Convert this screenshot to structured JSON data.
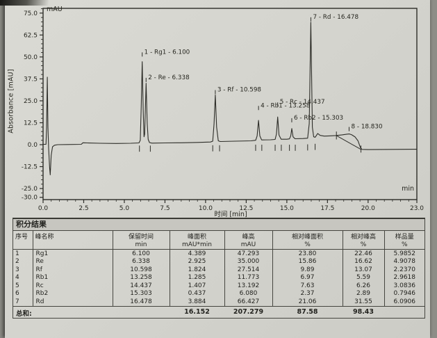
{
  "colors": {
    "paper": "#d5d5cf",
    "ink": "#26261f",
    "line": "#2c2c27",
    "title_bar_bg": "#c7c6c0",
    "surround": "#8d8d87"
  },
  "chart": {
    "y_axis_title": "Absorbance [mAU]",
    "x_axis_title": "时间 [min]",
    "y_unit_corner": "mAU",
    "x_unit_corner": "min"
  },
  "chart_data": {
    "type": "line",
    "title": "",
    "xlabel": "时间 [min]",
    "ylabel": "Absorbance [mAU]",
    "xlim": [
      0,
      23
    ],
    "ylim": [
      -31.3,
      77.7
    ],
    "x_major_ticks": [
      0,
      2.5,
      5,
      7.5,
      10,
      12.5,
      15,
      17.5,
      20,
      23
    ],
    "x_major_labels": [
      "0.0",
      "2.5",
      "5.0",
      "7.5",
      "10.0",
      "12.5",
      "15.0",
      "17.5",
      "20.0",
      "23.0"
    ],
    "x_minor_step": 0.5,
    "y_major_ticks": [
      75,
      62.5,
      50,
      37.5,
      25,
      12.5,
      0,
      -12.5,
      -25,
      -30
    ],
    "y_major_labels": [
      "75.0",
      "62.5",
      "50.0",
      "37.5",
      "25.0",
      "12.5",
      "0.0",
      "-12.5",
      "-25.0",
      "-30.0"
    ],
    "y_minor_step": 2.5,
    "grid": false,
    "legend": "none",
    "peaks": [
      {
        "id": 1,
        "name": "Rg1",
        "rt": 6.1,
        "height_mAU": 47.293,
        "label": "1 - Rg1 - 6.100",
        "label_y": 53
      },
      {
        "id": 2,
        "name": "Re",
        "rt": 6.338,
        "height_mAU": 35.0,
        "label": "2 - Re - 6.338",
        "label_y": 38.5
      },
      {
        "id": 3,
        "name": "Rf",
        "rt": 10.598,
        "height_mAU": 27.514,
        "label": "3 - Rf - 10.598",
        "label_y": 31.5
      },
      {
        "id": 4,
        "name": "Rb1",
        "rt": 13.258,
        "height_mAU": 11.773,
        "label": "4 - Rb1 - 13.258",
        "label_y": 22.5
      },
      {
        "id": 5,
        "name": "Rc",
        "rt": 14.437,
        "height_mAU": 13.192,
        "label": "5 - Rc - 14.437",
        "label_y": 24.5
      },
      {
        "id": 6,
        "name": "Rb2",
        "rt": 15.303,
        "height_mAU": 6.08,
        "label": "6 - Rb2 - 15.303",
        "label_y": 15.5
      },
      {
        "id": 7,
        "name": "Rd",
        "rt": 16.478,
        "height_mAU": 66.427,
        "label": "7 - Rd - 16.478",
        "label_y": 73
      },
      {
        "id": 8,
        "name": "",
        "rt": 18.83,
        "height_mAU": 6.1,
        "label": "8 - 18.830",
        "label_y": 10.5
      }
    ],
    "trace": [
      [
        0,
        0.2
      ],
      [
        0.18,
        0.2
      ],
      [
        0.22,
        10
      ],
      [
        0.26,
        38.5
      ],
      [
        0.3,
        10
      ],
      [
        0.34,
        -2
      ],
      [
        0.4,
        -13
      ],
      [
        0.44,
        -17.2
      ],
      [
        0.5,
        -6
      ],
      [
        0.58,
        -1.2
      ],
      [
        0.7,
        -0.3
      ],
      [
        0.9,
        0.0
      ],
      [
        1.5,
        0.1
      ],
      [
        2.35,
        0.2
      ],
      [
        2.45,
        1.1
      ],
      [
        2.7,
        1.0
      ],
      [
        3.5,
        0.8
      ],
      [
        4.5,
        0.7
      ],
      [
        5.4,
        0.8
      ],
      [
        5.9,
        1.0
      ],
      [
        5.98,
        2.5
      ],
      [
        6.04,
        22
      ],
      [
        6.1,
        47.3
      ],
      [
        6.16,
        20
      ],
      [
        6.21,
        4.5
      ],
      [
        6.25,
        6
      ],
      [
        6.29,
        18
      ],
      [
        6.338,
        35.0
      ],
      [
        6.41,
        12
      ],
      [
        6.47,
        3
      ],
      [
        6.55,
        1.2
      ],
      [
        6.7,
        0.9
      ],
      [
        7.5,
        1.0
      ],
      [
        8.5,
        1.1
      ],
      [
        9.5,
        1.3
      ],
      [
        10.3,
        1.5
      ],
      [
        10.44,
        2.0
      ],
      [
        10.52,
        12
      ],
      [
        10.598,
        28.3
      ],
      [
        10.68,
        10
      ],
      [
        10.78,
        2.2
      ],
      [
        10.9,
        1.8
      ],
      [
        11.8,
        2.0
      ],
      [
        12.8,
        2.2
      ],
      [
        13.08,
        2.5
      ],
      [
        13.17,
        5
      ],
      [
        13.258,
        13.9
      ],
      [
        13.34,
        5
      ],
      [
        13.45,
        2.7
      ],
      [
        14.0,
        2.8
      ],
      [
        14.28,
        3.0
      ],
      [
        14.36,
        6
      ],
      [
        14.437,
        15.8
      ],
      [
        14.52,
        5.5
      ],
      [
        14.65,
        3.1
      ],
      [
        15.0,
        3.1
      ],
      [
        15.16,
        3.3
      ],
      [
        15.24,
        5
      ],
      [
        15.303,
        9.2
      ],
      [
        15.38,
        4.5
      ],
      [
        15.5,
        3.4
      ],
      [
        16.0,
        3.5
      ],
      [
        16.28,
        3.7
      ],
      [
        16.38,
        12
      ],
      [
        16.478,
        69.8
      ],
      [
        16.57,
        10
      ],
      [
        16.65,
        4.5
      ],
      [
        16.74,
        4.2
      ],
      [
        16.9,
        6.4
      ],
      [
        17.05,
        5.3
      ],
      [
        17.3,
        4.9
      ],
      [
        17.6,
        5.0
      ],
      [
        18.0,
        5.2
      ],
      [
        18.4,
        5.6
      ],
      [
        18.7,
        6.0
      ],
      [
        18.85,
        6.1
      ],
      [
        19.0,
        5.6
      ],
      [
        19.2,
        4.4
      ],
      [
        19.38,
        2.2
      ],
      [
        19.52,
        -1.5
      ],
      [
        19.62,
        -2.7
      ],
      [
        20.0,
        -2.8
      ],
      [
        21.5,
        -2.7
      ],
      [
        23.0,
        -2.6
      ]
    ],
    "integration_baseline": [
      [
        18.05,
        5.2
      ],
      [
        19.56,
        -2.7
      ]
    ],
    "integration_ticks": [
      [
        5.93,
        -0.5,
        -4
      ],
      [
        6.6,
        -0.5,
        -4
      ],
      [
        10.44,
        -0.3,
        -3.8
      ],
      [
        10.86,
        -0.3,
        -3.8
      ],
      [
        13.08,
        0,
        -3.5
      ],
      [
        13.46,
        0,
        -3.5
      ],
      [
        14.28,
        0,
        -3.5
      ],
      [
        14.66,
        0,
        -3.5
      ],
      [
        15.16,
        0,
        -3.5
      ],
      [
        15.52,
        0,
        -3.5
      ],
      [
        16.28,
        0.2,
        -3.3
      ],
      [
        16.74,
        0.5,
        -3
      ],
      [
        18.05,
        7.5,
        3
      ],
      [
        19.56,
        -0.5,
        -4.5
      ]
    ]
  },
  "table": {
    "title": "积分结果",
    "columns": [
      {
        "label": "序号",
        "unit": ""
      },
      {
        "label": "峰名称",
        "unit": ""
      },
      {
        "label": "保留时间",
        "unit": "min"
      },
      {
        "label": "峰面积",
        "unit": "mAU*min"
      },
      {
        "label": "峰高",
        "unit": "mAU"
      },
      {
        "label": "相对峰面积",
        "unit": "%"
      },
      {
        "label": "相对峰高",
        "unit": "%"
      },
      {
        "label": "样品量",
        "unit": "%"
      }
    ],
    "rows": [
      [
        "1",
        "Rg1",
        "6.100",
        "4.389",
        "47.293",
        "23.80",
        "22.46",
        "5.9852"
      ],
      [
        "2",
        "Re",
        "6.338",
        "2.925",
        "35.000",
        "15.86",
        "16.62",
        "4.9078"
      ],
      [
        "3",
        "Rf",
        "10.598",
        "1.824",
        "27.514",
        "9.89",
        "13.07",
        "2.2370"
      ],
      [
        "4",
        "Rb1",
        "13.258",
        "1.285",
        "11.773",
        "6.97",
        "5.59",
        "2.9618"
      ],
      [
        "5",
        "Rc",
        "14.437",
        "1.407",
        "13.192",
        "7.63",
        "6.26",
        "3.0836"
      ],
      [
        "6",
        "Rb2",
        "15.303",
        "0.437",
        "6.080",
        "2.37",
        "2.89",
        "0.7946"
      ],
      [
        "7",
        "Rd",
        "16.478",
        "3.884",
        "66.427",
        "21.06",
        "31.55",
        "6.0906"
      ]
    ],
    "sum_label": "总和:",
    "sum_area": "16.152",
    "sum_height": "207.279",
    "sum_rel_area": "87.58",
    "sum_rel_height": "98.43"
  }
}
